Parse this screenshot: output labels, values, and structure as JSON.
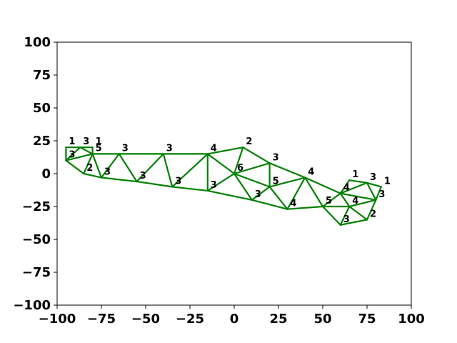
{
  "chart_data": {
    "type": "mesh",
    "title": "",
    "xlabel": "",
    "ylabel": "",
    "xlim": [
      -100,
      100
    ],
    "ylim": [
      -100,
      100
    ],
    "x_ticks": [
      "−100",
      "−75",
      "−50",
      "−25",
      "0",
      "25",
      "50",
      "75",
      "100"
    ],
    "y_ticks": [
      "100",
      "75",
      "50",
      "25",
      "0",
      "−25",
      "−50",
      "−75",
      "−100"
    ],
    "x_tick_values": [
      -100,
      -75,
      -50,
      -25,
      0,
      25,
      50,
      75,
      100
    ],
    "y_tick_values": [
      100,
      75,
      50,
      25,
      0,
      -25,
      -50,
      -75,
      -100
    ],
    "grid": false,
    "edge_color": "#008000",
    "nodes": [
      {
        "id": "A1",
        "x": -95,
        "y": 20,
        "label": "1"
      },
      {
        "id": "A2",
        "x": -87,
        "y": 20,
        "label": "3"
      },
      {
        "id": "A3",
        "x": -80,
        "y": 20,
        "label": "1"
      },
      {
        "id": "A4",
        "x": -95,
        "y": 10,
        "label": "3"
      },
      {
        "id": "A5",
        "x": -80,
        "y": 15,
        "label": "5"
      },
      {
        "id": "A6",
        "x": -85,
        "y": 0,
        "label": "2"
      },
      {
        "id": "A7",
        "x": -75,
        "y": -3,
        "label": "3"
      },
      {
        "id": "A8",
        "x": -65,
        "y": 15,
        "label": "3"
      },
      {
        "id": "A9",
        "x": -55,
        "y": -6,
        "label": "3"
      },
      {
        "id": "A10",
        "x": -40,
        "y": 15,
        "label": "3"
      },
      {
        "id": "A11",
        "x": -35,
        "y": -10,
        "label": "3"
      },
      {
        "id": "A12",
        "x": -15,
        "y": 15,
        "label": "4"
      },
      {
        "id": "A13",
        "x": -15,
        "y": -13,
        "label": "3"
      },
      {
        "id": "A14",
        "x": 5,
        "y": 20,
        "label": "2"
      },
      {
        "id": "A15",
        "x": 0,
        "y": 0,
        "label": "6"
      },
      {
        "id": "A16",
        "x": 20,
        "y": 8,
        "label": "3"
      },
      {
        "id": "A17",
        "x": 10,
        "y": -20,
        "label": "3"
      },
      {
        "id": "A18",
        "x": 20,
        "y": -10,
        "label": "5"
      },
      {
        "id": "A19",
        "x": 40,
        "y": -3,
        "label": "4"
      },
      {
        "id": "A20",
        "x": 30,
        "y": -27,
        "label": "4"
      },
      {
        "id": "A21",
        "x": 50,
        "y": -25,
        "label": "5"
      },
      {
        "id": "A22",
        "x": 60,
        "y": -15,
        "label": "4"
      },
      {
        "id": "A23",
        "x": 60,
        "y": -39,
        "label": "3"
      },
      {
        "id": "A24",
        "x": 65,
        "y": -5,
        "label": "1"
      },
      {
        "id": "A25",
        "x": 75,
        "y": -7,
        "label": "3"
      },
      {
        "id": "A26",
        "x": 65,
        "y": -25,
        "label": "4"
      },
      {
        "id": "A27",
        "x": 75,
        "y": -35,
        "label": "2"
      },
      {
        "id": "A28",
        "x": 80,
        "y": -20,
        "label": "3"
      },
      {
        "id": "A29",
        "x": 83,
        "y": -10,
        "label": "1"
      }
    ],
    "edges": [
      [
        "A1",
        "A3"
      ],
      [
        "A1",
        "A4"
      ],
      [
        "A3",
        "A5"
      ],
      [
        "A4",
        "A2"
      ],
      [
        "A2",
        "A5"
      ],
      [
        "A4",
        "A5"
      ],
      [
        "A4",
        "A6"
      ],
      [
        "A6",
        "A5"
      ],
      [
        "A5",
        "A7"
      ],
      [
        "A6",
        "A7"
      ],
      [
        "A5",
        "A8"
      ],
      [
        "A7",
        "A8"
      ],
      [
        "A8",
        "A9"
      ],
      [
        "A7",
        "A9"
      ],
      [
        "A8",
        "A10"
      ],
      [
        "A9",
        "A10"
      ],
      [
        "A10",
        "A11"
      ],
      [
        "A9",
        "A11"
      ],
      [
        "A10",
        "A12"
      ],
      [
        "A11",
        "A12"
      ],
      [
        "A11",
        "A13"
      ],
      [
        "A12",
        "A13"
      ],
      [
        "A12",
        "A15"
      ],
      [
        "A13",
        "A15"
      ],
      [
        "A12",
        "A14"
      ],
      [
        "A14",
        "A15"
      ],
      [
        "A14",
        "A16"
      ],
      [
        "A15",
        "A16"
      ],
      [
        "A15",
        "A17"
      ],
      [
        "A13",
        "A17"
      ],
      [
        "A15",
        "A18"
      ],
      [
        "A16",
        "A18"
      ],
      [
        "A17",
        "A18"
      ],
      [
        "A17",
        "A20"
      ],
      [
        "A18",
        "A20"
      ],
      [
        "A18",
        "A19"
      ],
      [
        "A19",
        "A20"
      ],
      [
        "A16",
        "A19"
      ],
      [
        "A20",
        "A21"
      ],
      [
        "A19",
        "A21"
      ],
      [
        "A19",
        "A22"
      ],
      [
        "A21",
        "A22"
      ],
      [
        "A21",
        "A23"
      ],
      [
        "A23",
        "A27"
      ],
      [
        "A23",
        "A26"
      ],
      [
        "A21",
        "A26"
      ],
      [
        "A22",
        "A26"
      ],
      [
        "A22",
        "A24"
      ],
      [
        "A24",
        "A25"
      ],
      [
        "A22",
        "A25"
      ],
      [
        "A25",
        "A28"
      ],
      [
        "A22",
        "A28"
      ],
      [
        "A26",
        "A28"
      ],
      [
        "A26",
        "A27"
      ],
      [
        "A27",
        "A28"
      ],
      [
        "A28",
        "A29"
      ],
      [
        "A25",
        "A29"
      ]
    ]
  }
}
